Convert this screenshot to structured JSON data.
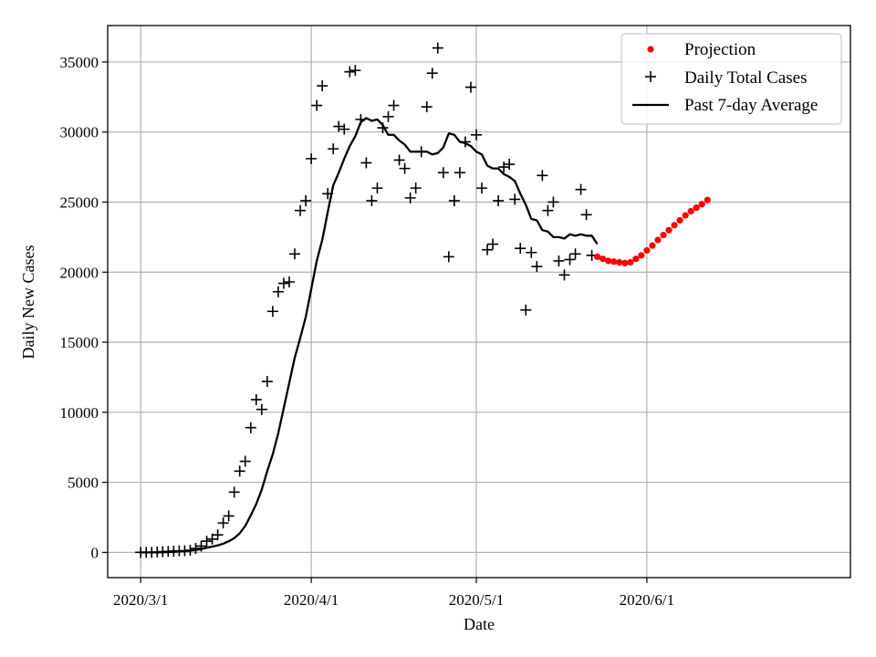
{
  "chart_data": {
    "type": "scatter",
    "xlabel": "Date",
    "ylabel": "Daily New Cases",
    "xlim": [
      "2020-02-24",
      "2020-07-08"
    ],
    "ylim": [
      -1800,
      37600
    ],
    "x_ticks": [
      {
        "date": "2020-03-01",
        "label": "2020/3/1"
      },
      {
        "date": "2020-04-01",
        "label": "2020/4/1"
      },
      {
        "date": "2020-05-01",
        "label": "2020/5/1"
      },
      {
        "date": "2020-06-01",
        "label": "2020/6/1"
      }
    ],
    "y_ticks": [
      0,
      5000,
      10000,
      15000,
      20000,
      25000,
      30000,
      35000
    ],
    "grid": true,
    "legend_position": "top-right",
    "series": [
      {
        "name": "Projection",
        "kind": "dots",
        "color": "#ff0000",
        "start_date": "2020-05-23",
        "values": [
          21100,
          20950,
          20800,
          20750,
          20700,
          20650,
          20700,
          20950,
          21200,
          21550,
          21900,
          22300,
          22650,
          23000,
          23350,
          23700,
          24050,
          24350,
          24600,
          24850,
          25150
        ]
      },
      {
        "name": "Daily Total Cases",
        "kind": "plus",
        "color": "#000000",
        "start_date": "2020-03-01",
        "values": [
          0,
          0,
          0,
          30,
          50,
          70,
          90,
          110,
          120,
          150,
          280,
          450,
          800,
          950,
          1250,
          2100,
          2600,
          4300,
          5800,
          6500,
          8900,
          10900,
          10200,
          12200,
          17200,
          18600,
          19200,
          19300,
          21300,
          24400,
          25100,
          28100,
          31900,
          33300,
          25600,
          28800,
          30400,
          30200,
          34300,
          34400,
          30900,
          27800,
          25100,
          26000,
          30300,
          31100,
          31900,
          28000,
          27400,
          25300,
          26000,
          28600,
          31800,
          34200,
          36000,
          27100,
          21100,
          25100,
          27100,
          29300,
          33200,
          29800,
          26000,
          21600,
          22000,
          25100,
          27500,
          27700,
          25200,
          21700,
          17300,
          21400,
          20400,
          26900,
          24400,
          25000,
          20800,
          19800,
          20900,
          21300,
          25900,
          24100,
          21200
        ]
      },
      {
        "name": "Past 7-day Average",
        "kind": "line",
        "color": "#000000",
        "start_date": "2020-03-01",
        "values": [
          0,
          0,
          0,
          0,
          10,
          20,
          40,
          70,
          90,
          120,
          170,
          240,
          330,
          410,
          500,
          620,
          790,
          1020,
          1360,
          1880,
          2640,
          3450,
          4480,
          5800,
          7000,
          8500,
          10300,
          12100,
          13900,
          15300,
          16800,
          18800,
          20800,
          22300,
          24300,
          26200,
          27100,
          28100,
          29000,
          29700,
          30700,
          31000,
          30800,
          30900,
          30500,
          29800,
          29800,
          29400,
          29100,
          28600,
          28600,
          28600,
          28600,
          28400,
          28500,
          28900,
          29900,
          29800,
          29300,
          29200,
          29000,
          28600,
          28400,
          27600,
          27400,
          27400,
          27000,
          26800,
          26500,
          25600,
          24800,
          23800,
          23700,
          23000,
          22900,
          22500,
          22500,
          22400,
          22700,
          22600,
          22700,
          22600,
          22600,
          22000
        ]
      }
    ]
  }
}
